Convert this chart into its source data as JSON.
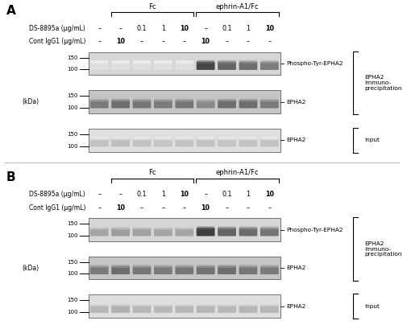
{
  "fig_width": 5.0,
  "fig_height": 4.09,
  "dpi": 100,
  "bg_color": "#ffffff",
  "panel_A": {
    "label": "A",
    "title_Fc": "Fc",
    "title_ephrin": "ephrin-A1/Fc",
    "row1_label": "DS-8895a (μg/mL)",
    "row2_label": "Cont IgG1 (μg/mL)",
    "row1_values": [
      "–",
      "–",
      "0.1",
      "1",
      "10",
      "–",
      "0.1",
      "1",
      "10"
    ],
    "row2_values": [
      "–",
      "10",
      "–",
      "–",
      "–",
      "10",
      "–",
      "–",
      "–"
    ],
    "blot1_label": "Phospho-Tyr-EPHA2",
    "blot2_label": "EPHA2",
    "blot3_label": "EPHA2",
    "bracket1_label": [
      "EPHA2",
      "Immuno-",
      "precipitation"
    ],
    "bracket2_label": [
      "Input"
    ],
    "kda_label": "(kDa)",
    "band_intensities_A": [
      [
        0.04,
        0.06,
        0.06,
        0.06,
        0.06,
        0.88,
        0.72,
        0.68,
        0.62
      ],
      [
        0.62,
        0.68,
        0.64,
        0.62,
        0.64,
        0.55,
        0.68,
        0.68,
        0.62
      ],
      [
        0.28,
        0.3,
        0.28,
        0.27,
        0.28,
        0.28,
        0.27,
        0.28,
        0.28
      ]
    ],
    "band_intensities_B": [
      [
        0.42,
        0.46,
        0.44,
        0.42,
        0.42,
        0.92,
        0.74,
        0.7,
        0.66
      ],
      [
        0.62,
        0.68,
        0.64,
        0.62,
        0.64,
        0.66,
        0.68,
        0.64,
        0.62
      ],
      [
        0.34,
        0.36,
        0.34,
        0.33,
        0.34,
        0.34,
        0.33,
        0.34,
        0.34
      ]
    ]
  }
}
